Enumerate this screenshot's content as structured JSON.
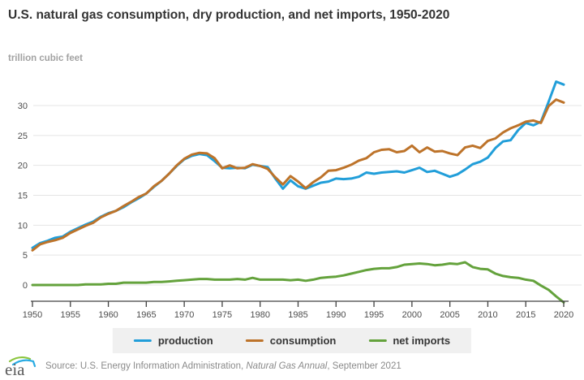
{
  "header": {
    "title": "U.S. natural gas consumption, dry production, and net imports, 1950-2020",
    "subtitle": "trillion cubic feet"
  },
  "chart_data": {
    "type": "line",
    "title": "U.S. natural gas consumption, dry production, and net imports, 1950-2020",
    "ylabel": "trillion cubic feet",
    "xlabel": "",
    "xlim": [
      1950,
      2020
    ],
    "ylim": [
      -3,
      35
    ],
    "grid": "horizontal",
    "legend_position": "bottom",
    "y_ticks": [
      0,
      5,
      10,
      15,
      20,
      25,
      30
    ],
    "x_ticks": [
      1950,
      1955,
      1960,
      1965,
      1970,
      1975,
      1980,
      1985,
      1990,
      1995,
      2000,
      2005,
      2010,
      2015,
      2020
    ],
    "x": [
      1950,
      1951,
      1952,
      1953,
      1954,
      1955,
      1956,
      1957,
      1958,
      1959,
      1960,
      1961,
      1962,
      1963,
      1964,
      1965,
      1966,
      1967,
      1968,
      1969,
      1970,
      1971,
      1972,
      1973,
      1974,
      1975,
      1976,
      1977,
      1978,
      1979,
      1980,
      1981,
      1982,
      1983,
      1984,
      1985,
      1986,
      1987,
      1988,
      1989,
      1990,
      1991,
      1992,
      1993,
      1994,
      1995,
      1996,
      1997,
      1998,
      1999,
      2000,
      2001,
      2002,
      2003,
      2004,
      2005,
      2006,
      2007,
      2008,
      2009,
      2010,
      2011,
      2012,
      2013,
      2014,
      2015,
      2016,
      2017,
      2018,
      2019,
      2020
    ],
    "series": [
      {
        "name": "production",
        "color": "#219ed9",
        "values": [
          6.2,
          7.0,
          7.4,
          7.9,
          8.1,
          8.9,
          9.5,
          10.1,
          10.6,
          11.4,
          12.0,
          12.4,
          13.0,
          13.8,
          14.5,
          15.3,
          16.4,
          17.4,
          18.6,
          19.9,
          21.0,
          21.6,
          21.9,
          21.7,
          20.7,
          19.6,
          19.5,
          19.6,
          19.5,
          20.1,
          19.9,
          19.7,
          17.8,
          16.1,
          17.5,
          16.5,
          16.1,
          16.6,
          17.1,
          17.3,
          17.8,
          17.7,
          17.8,
          18.1,
          18.8,
          18.6,
          18.8,
          18.9,
          19.0,
          18.8,
          19.2,
          19.6,
          18.9,
          19.1,
          18.6,
          18.1,
          18.5,
          19.3,
          20.2,
          20.6,
          21.3,
          22.9,
          24.0,
          24.2,
          25.9,
          27.1,
          26.7,
          27.3,
          30.6,
          34.0,
          33.5
        ]
      },
      {
        "name": "consumption",
        "color": "#bd732a",
        "values": [
          5.8,
          6.8,
          7.2,
          7.5,
          7.9,
          8.7,
          9.3,
          9.9,
          10.4,
          11.3,
          11.9,
          12.4,
          13.2,
          13.9,
          14.7,
          15.3,
          16.5,
          17.4,
          18.6,
          20.0,
          21.1,
          21.8,
          22.1,
          22.0,
          21.2,
          19.5,
          20.0,
          19.5,
          19.6,
          20.2,
          19.9,
          19.4,
          18.0,
          16.8,
          18.2,
          17.3,
          16.2,
          17.2,
          18.0,
          19.1,
          19.2,
          19.6,
          20.1,
          20.8,
          21.2,
          22.2,
          22.6,
          22.7,
          22.2,
          22.4,
          23.3,
          22.2,
          23.0,
          22.3,
          22.4,
          22.0,
          21.7,
          23.0,
          23.3,
          22.9,
          24.1,
          24.5,
          25.5,
          26.2,
          26.7,
          27.3,
          27.5,
          27.1,
          29.9,
          31.0,
          30.5
        ]
      },
      {
        "name": "net imports",
        "color": "#64a23c",
        "values": [
          0.0,
          0.0,
          0.0,
          0.0,
          0.0,
          0.0,
          0.0,
          0.1,
          0.1,
          0.1,
          0.2,
          0.2,
          0.4,
          0.4,
          0.4,
          0.4,
          0.5,
          0.5,
          0.6,
          0.7,
          0.8,
          0.9,
          1.0,
          1.0,
          0.9,
          0.9,
          0.9,
          1.0,
          0.9,
          1.2,
          0.9,
          0.9,
          0.9,
          0.9,
          0.8,
          0.9,
          0.7,
          0.9,
          1.2,
          1.3,
          1.4,
          1.6,
          1.9,
          2.2,
          2.5,
          2.7,
          2.8,
          2.8,
          3.0,
          3.4,
          3.5,
          3.6,
          3.5,
          3.3,
          3.4,
          3.6,
          3.5,
          3.8,
          3.0,
          2.7,
          2.6,
          1.9,
          1.5,
          1.3,
          1.2,
          0.9,
          0.7,
          -0.1,
          -0.8,
          -1.9,
          -2.9
        ]
      }
    ]
  },
  "colors": {
    "grid": "#e4e4e4",
    "axis": "#404040",
    "tick_label": "#4d4d4d"
  },
  "footer": {
    "logo_text": "eia",
    "source_prefix": "Source: U.S. Energy Information Administration, ",
    "source_italic": "Natural Gas Annual",
    "source_suffix": ", September 2021"
  }
}
